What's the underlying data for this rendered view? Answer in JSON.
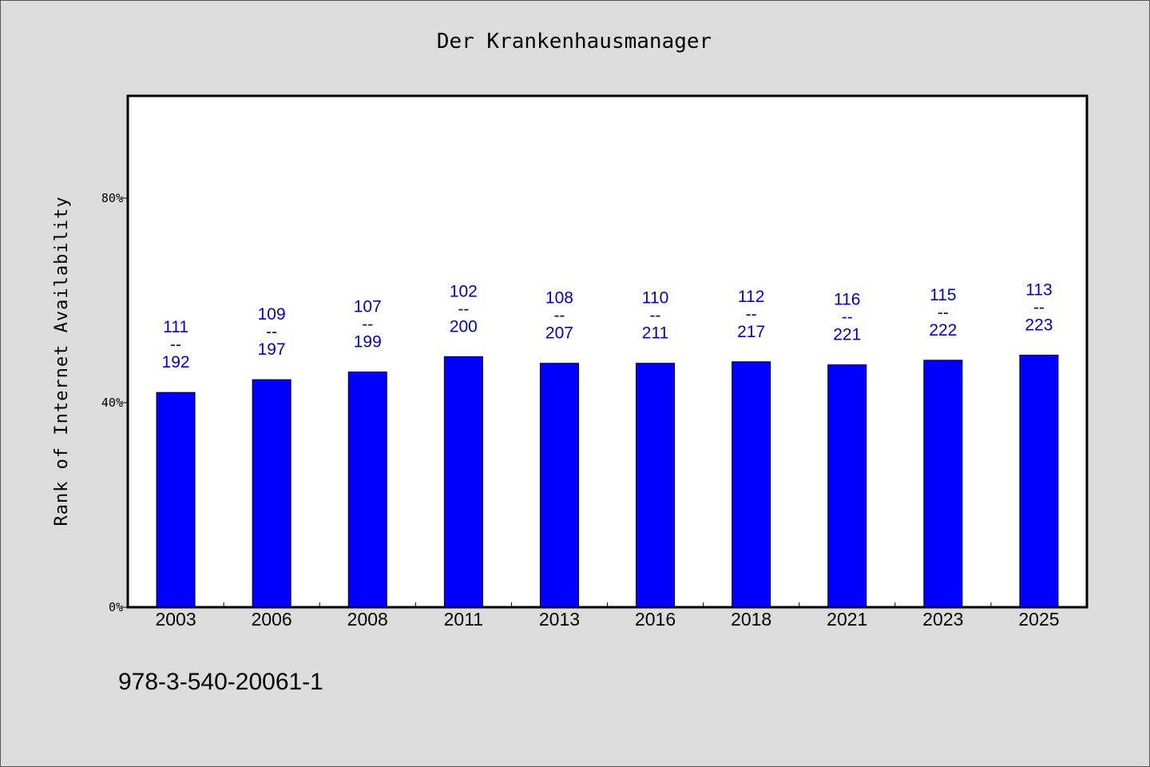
{
  "chart_data": {
    "type": "bar",
    "title": "Der Krankenhausmanager",
    "ylabel": "Rank of Internet Availability",
    "xlabel": "",
    "categories": [
      "2003",
      "2006",
      "2008",
      "2011",
      "2013",
      "2016",
      "2018",
      "2021",
      "2023",
      "2025"
    ],
    "values": [
      42,
      44.5,
      46,
      49,
      47.7,
      47.7,
      48,
      47.4,
      48.3,
      49.3
    ],
    "data_labels": [
      {
        "top": "111",
        "sep": "--",
        "bottom": "192"
      },
      {
        "top": "109",
        "sep": "--",
        "bottom": "197"
      },
      {
        "top": "107",
        "sep": "--",
        "bottom": "199"
      },
      {
        "top": "102",
        "sep": "--",
        "bottom": "200"
      },
      {
        "top": "108",
        "sep": "--",
        "bottom": "207"
      },
      {
        "top": "110",
        "sep": "--",
        "bottom": "211"
      },
      {
        "top": "112",
        "sep": "--",
        "bottom": "217"
      },
      {
        "top": "116",
        "sep": "--",
        "bottom": "221"
      },
      {
        "top": "115",
        "sep": "--",
        "bottom": "222"
      },
      {
        "top": "113",
        "sep": "--",
        "bottom": "223"
      }
    ],
    "ylim": [
      0,
      100
    ],
    "yticks": [
      {
        "value": 0,
        "label": "0%"
      },
      {
        "value": 40,
        "label": "40%"
      },
      {
        "value": 80,
        "label": "80%"
      }
    ],
    "grid": false,
    "colors": {
      "bar": "#0000ff",
      "label": "#0000cc",
      "background": "#dcdcdc",
      "plot_bg": "#ffffff"
    }
  },
  "footer": {
    "isbn": "978-3-540-20061-1"
  }
}
